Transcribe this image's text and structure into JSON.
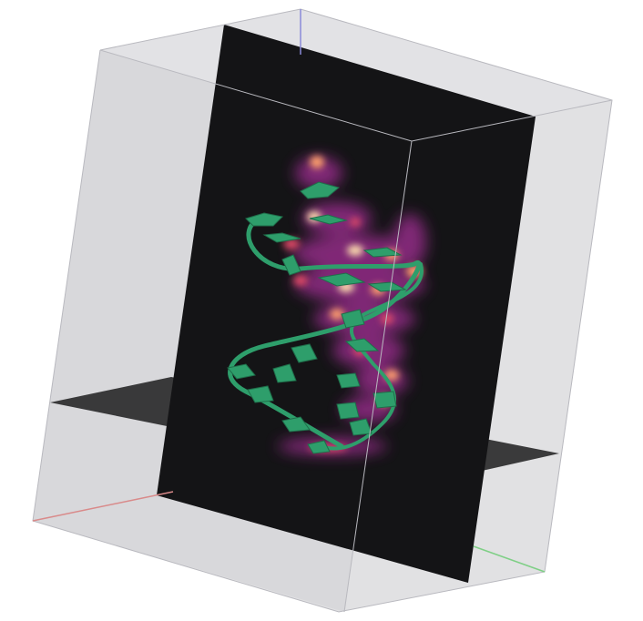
{
  "viewer": {
    "background_color": "#ffffff",
    "box_face_color": "#d9d9db",
    "box_edge_color": "#c4c4c8",
    "slice_color": "#141416",
    "floor_slice_color": "#2b2b2d",
    "axis_x_color": "#d98a8a",
    "axis_y_color": "#7fcf86",
    "axis_z_color": "#8a8ad9",
    "helix_color": "#2e9e6b",
    "density_colors": [
      "#3b0f70",
      "#8c2981",
      "#de4968",
      "#fe9f6d",
      "#fcfdbf"
    ]
  }
}
